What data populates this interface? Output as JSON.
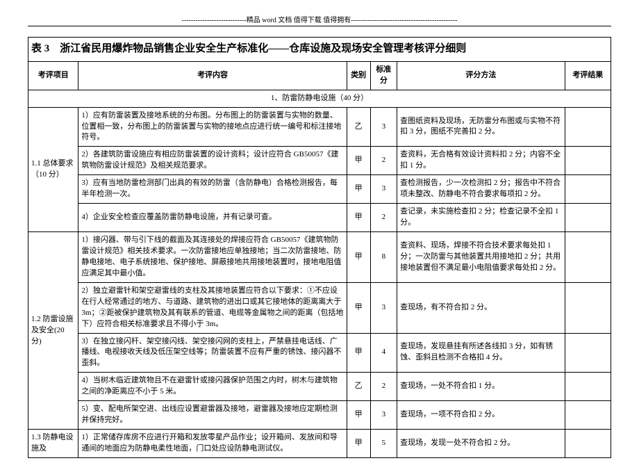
{
  "header_decoration": "----------------------------精品 word 文档  值得下载  值得拥有----------------------------------------------",
  "title": "表 3　浙江省民用爆炸物品销售企业安全生产标准化——仓库设施及现场安全管理考核评分细则",
  "columns": {
    "item": "考评项目",
    "content": "考评内容",
    "category": "类别",
    "score": "标准分",
    "method": "评分方法",
    "result": "考评结果"
  },
  "section1": {
    "heading": "1、防雷防静电设施（40 分）"
  },
  "group1": {
    "label": "1.1 总体要求（10 分）",
    "rows": [
      {
        "content": "1）应有防雷装置及接地系统的分布图。分布图上的防雷装置与实物的数量、位置相一致，分布图上的防雷装置与实物的接地点应进行统一编号和标注接地符号。",
        "category": "乙",
        "score": "3",
        "method": "查图纸资料及现场，无防雷分布图或与实物不符扣 3 分，图纸不完善扣 2 分。"
      },
      {
        "content": "2）各建筑防雷设施应有相应防雷装置的设计资料；设计应符合 GB50057《建筑物防雷设计规范》及相关规范要求。",
        "category": "甲",
        "score": "2",
        "method": "查资料，无合格有效设计资料扣 2 分；内容不全扣 1 分。"
      },
      {
        "content": "3）应有当地防雷检测部门出具的有效的防雷（含防静电）合格检测报告，每半年检测一次。",
        "category": "甲",
        "score": "3",
        "method": "查检测报告，少一次检测扣 2 分；报告中不符合项未整改、防静电不符合要求每项扣 2 分。"
      },
      {
        "content": "4）企业安全检查应覆盖防雷防静电设施，并有记录可查。",
        "category": "甲",
        "score": "2",
        "method": "查记录，未实施检查扣 2 分；检查记录不全扣 1 分。"
      }
    ]
  },
  "group2": {
    "label": "1.2 防雷设施及安全(20 分)",
    "rows": [
      {
        "content": "1）接闪器、带与引下线的截面及其连接处的焊接应符合 GB50057《建筑物防雷设计规范》相关技术要求。一次防雷接地应单独接地；当二次防雷接地、防静电接地、电子系统接地、保护接地、屏蔽接地共用接地装置时，接地电阻值应满足其中最小值。",
        "category": "甲",
        "score": "8",
        "method": "查资料、现场，焊接不符合技术要求每处扣 1 分；一次防雷与其他装置共用接地扣 2 分；共用接地装置但不满足最小电阻值要求每处扣 2 分。"
      },
      {
        "content": "2）独立避雷针和架空避雷线的支柱及其接地装置应符合以下要求：①不应设在行人经常通过的地方、与道路、建筑物的进出口或其它接地体的距离离大于 3m；②距被保护建筑物及其有联系的管道、电缆等金属物之间的距离（包括地下）应符合相关标准要求且不得小于 3m。",
        "category": "甲",
        "score": "3",
        "method": "查现场，有不符合扣 2 分。"
      },
      {
        "content": "3）在独立接闪杆、架空接闪线、架空接闪网的支柱上，严禁悬挂电话线、广播线、电视接收天线及低压架空线等；防雷装置不应有严重的锈蚀、接闪器不歪斜。",
        "category": "甲",
        "score": "4",
        "method": "查现场，发现悬挂有所述各线扣 3 分，如有锈蚀、歪斜且检测不合格扣 4 分。"
      },
      {
        "content": "4）当树木临近建筑物且不在避雷针或接闪器保护范围之内时，树木与建筑物之间的净距离应不小于 5 米。",
        "category": "乙",
        "score": "2",
        "method": "查现场，一处不符合扣 1 分。"
      },
      {
        "content": "5）变、配电所架空进、出线应设置避雷器及接地，避雷器及接地应定期检测并保持完好。",
        "category": "甲",
        "score": "3",
        "method": "查现场，一项不符合扣 2 分。"
      }
    ]
  },
  "group3": {
    "label": "1.3 防静电设施及",
    "rows": [
      {
        "content": "1）正常储存库房不应进行开箱和发放零星产品作业；设开箱间、发放间和导通间的地面应为防静电柔性地面，门口处应设防静电测试仪。",
        "category": "甲",
        "score": "5",
        "method": "查现场，发现一处不符合扣 2 分。"
      }
    ]
  }
}
